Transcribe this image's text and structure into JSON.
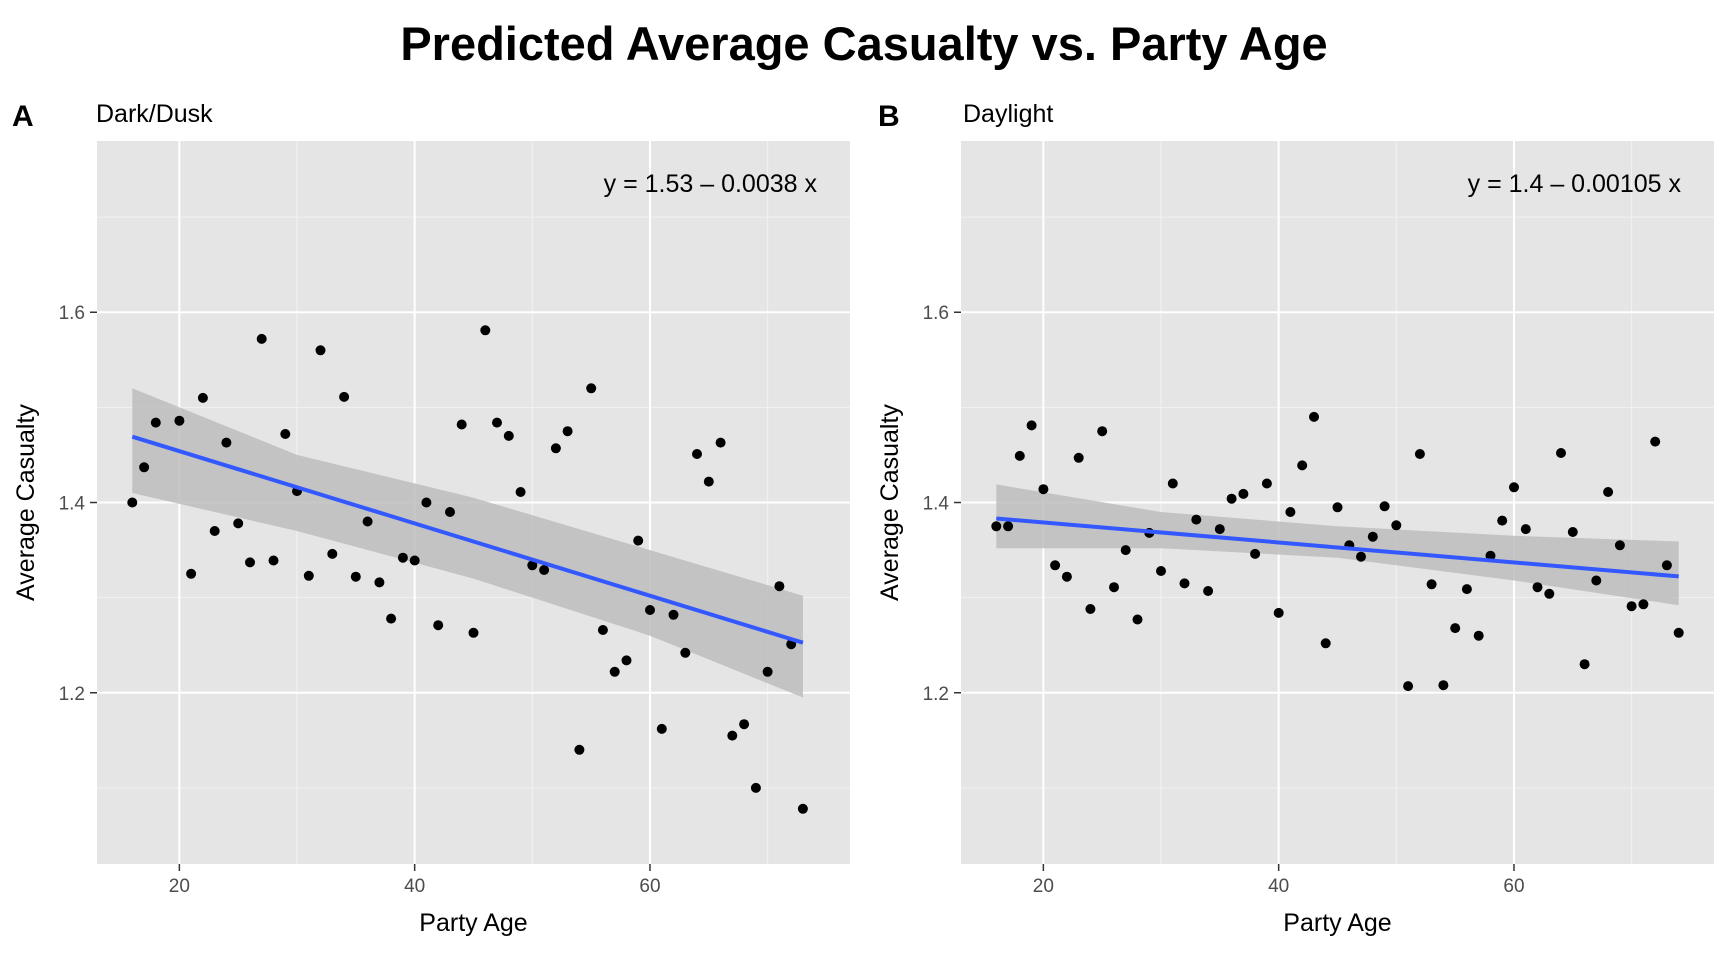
{
  "title": "Predicted Average Casualty vs. Party Age",
  "chart_data": [
    {
      "type": "scatter",
      "tag": "A",
      "subtitle": "Dark/Dusk",
      "equation": "y = 1.53 – 0.0038 x",
      "xlabel": "Party Age",
      "ylabel": "Average Casualty",
      "xlim": [
        13,
        77
      ],
      "ylim": [
        1.02,
        1.78
      ],
      "x_ticks": [
        20,
        40,
        60
      ],
      "y_ticks": [
        1.2,
        1.4,
        1.6
      ],
      "x_tick_labels": [
        "20",
        "40",
        "60"
      ],
      "y_tick_labels": [
        "1.2",
        "1.4",
        "1.6"
      ],
      "grid": true,
      "points": [
        [
          16,
          1.4
        ],
        [
          17,
          1.437
        ],
        [
          18,
          1.484
        ],
        [
          20,
          1.486
        ],
        [
          21,
          1.325
        ],
        [
          22,
          1.51
        ],
        [
          23,
          1.37
        ],
        [
          24,
          1.463
        ],
        [
          25,
          1.378
        ],
        [
          26,
          1.337
        ],
        [
          27,
          1.572
        ],
        [
          28,
          1.339
        ],
        [
          29,
          1.472
        ],
        [
          30,
          1.412
        ],
        [
          31,
          1.323
        ],
        [
          32,
          1.56
        ],
        [
          33,
          1.346
        ],
        [
          34,
          1.511
        ],
        [
          35,
          1.322
        ],
        [
          36,
          1.38
        ],
        [
          37,
          1.316
        ],
        [
          38,
          1.278
        ],
        [
          39,
          1.342
        ],
        [
          40,
          1.339
        ],
        [
          41,
          1.4
        ],
        [
          42,
          1.271
        ],
        [
          43,
          1.39
        ],
        [
          44,
          1.482
        ],
        [
          45,
          1.263
        ],
        [
          46,
          1.581
        ],
        [
          47,
          1.484
        ],
        [
          48,
          1.47
        ],
        [
          49,
          1.411
        ],
        [
          50,
          1.334
        ],
        [
          51,
          1.329
        ],
        [
          52,
          1.457
        ],
        [
          53,
          1.475
        ],
        [
          54,
          1.14
        ],
        [
          55,
          1.52
        ],
        [
          56,
          1.266
        ],
        [
          57,
          1.222
        ],
        [
          58,
          1.234
        ],
        [
          59,
          1.36
        ],
        [
          60,
          1.287
        ],
        [
          61,
          1.162
        ],
        [
          62,
          1.282
        ],
        [
          63,
          1.242
        ],
        [
          64,
          1.451
        ],
        [
          65,
          1.422
        ],
        [
          66,
          1.463
        ],
        [
          67,
          1.155
        ],
        [
          68,
          1.167
        ],
        [
          69,
          1.1
        ],
        [
          70,
          1.222
        ],
        [
          71,
          1.312
        ],
        [
          72,
          1.251
        ],
        [
          73,
          1.078
        ]
      ],
      "fit": {
        "intercept": 1.53,
        "slope": -0.0038,
        "x_range": [
          16,
          73
        ]
      },
      "ci": {
        "x": [
          16,
          30,
          45,
          60,
          73
        ],
        "lower": [
          1.41,
          1.37,
          1.32,
          1.26,
          1.195
        ],
        "upper": [
          1.52,
          1.45,
          1.405,
          1.35,
          1.302
        ]
      },
      "colors": {
        "line": "#3358ff",
        "ribbon": "#bdbdbd",
        "panel": "#e5e5e5",
        "point": "#000000"
      }
    },
    {
      "type": "scatter",
      "tag": "B",
      "subtitle": "Daylight",
      "equation": "y = 1.4 – 0.00105 x",
      "xlabel": "Party Age",
      "ylabel": "Average Casualty",
      "xlim": [
        13,
        77
      ],
      "ylim": [
        1.02,
        1.78
      ],
      "x_ticks": [
        20,
        40,
        60
      ],
      "y_ticks": [
        1.2,
        1.4,
        1.6
      ],
      "x_tick_labels": [
        "20",
        "40",
        "60"
      ],
      "y_tick_labels": [
        "1.2",
        "1.4",
        "1.6"
      ],
      "grid": true,
      "points": [
        [
          16,
          1.375
        ],
        [
          17,
          1.375
        ],
        [
          18,
          1.449
        ],
        [
          19,
          1.481
        ],
        [
          20,
          1.414
        ],
        [
          21,
          1.334
        ],
        [
          22,
          1.322
        ],
        [
          23,
          1.447
        ],
        [
          24,
          1.288
        ],
        [
          25,
          1.475
        ],
        [
          26,
          1.311
        ],
        [
          27,
          1.35
        ],
        [
          28,
          1.277
        ],
        [
          29,
          1.368
        ],
        [
          30,
          1.328
        ],
        [
          31,
          1.42
        ],
        [
          32,
          1.315
        ],
        [
          33,
          1.382
        ],
        [
          34,
          1.307
        ],
        [
          35,
          1.372
        ],
        [
          36,
          1.404
        ],
        [
          37,
          1.409
        ],
        [
          38,
          1.346
        ],
        [
          39,
          1.42
        ],
        [
          40,
          1.284
        ],
        [
          41,
          1.39
        ],
        [
          42,
          1.439
        ],
        [
          43,
          1.49
        ],
        [
          44,
          1.252
        ],
        [
          45,
          1.395
        ],
        [
          46,
          1.355
        ],
        [
          47,
          1.343
        ],
        [
          48,
          1.364
        ],
        [
          49,
          1.396
        ],
        [
          50,
          1.376
        ],
        [
          51,
          1.207
        ],
        [
          52,
          1.451
        ],
        [
          53,
          1.314
        ],
        [
          54,
          1.208
        ],
        [
          55,
          1.268
        ],
        [
          56,
          1.309
        ],
        [
          57,
          1.26
        ],
        [
          58,
          1.344
        ],
        [
          59,
          1.381
        ],
        [
          60,
          1.416
        ],
        [
          61,
          1.372
        ],
        [
          62,
          1.311
        ],
        [
          63,
          1.304
        ],
        [
          64,
          1.452
        ],
        [
          65,
          1.369
        ],
        [
          66,
          1.23
        ],
        [
          67,
          1.318
        ],
        [
          68,
          1.411
        ],
        [
          69,
          1.355
        ],
        [
          70,
          1.291
        ],
        [
          71,
          1.293
        ],
        [
          72,
          1.464
        ],
        [
          73,
          1.334
        ],
        [
          74,
          1.263
        ]
      ],
      "fit": {
        "intercept": 1.4,
        "slope": -0.00105,
        "x_range": [
          16,
          74
        ]
      },
      "ci": {
        "x": [
          16,
          30,
          45,
          60,
          74
        ],
        "lower": [
          1.352,
          1.352,
          1.342,
          1.318,
          1.292
        ],
        "upper": [
          1.419,
          1.39,
          1.375,
          1.365,
          1.359
        ]
      },
      "colors": {
        "line": "#3358ff",
        "ribbon": "#bdbdbd",
        "panel": "#e5e5e5",
        "point": "#000000"
      }
    }
  ]
}
